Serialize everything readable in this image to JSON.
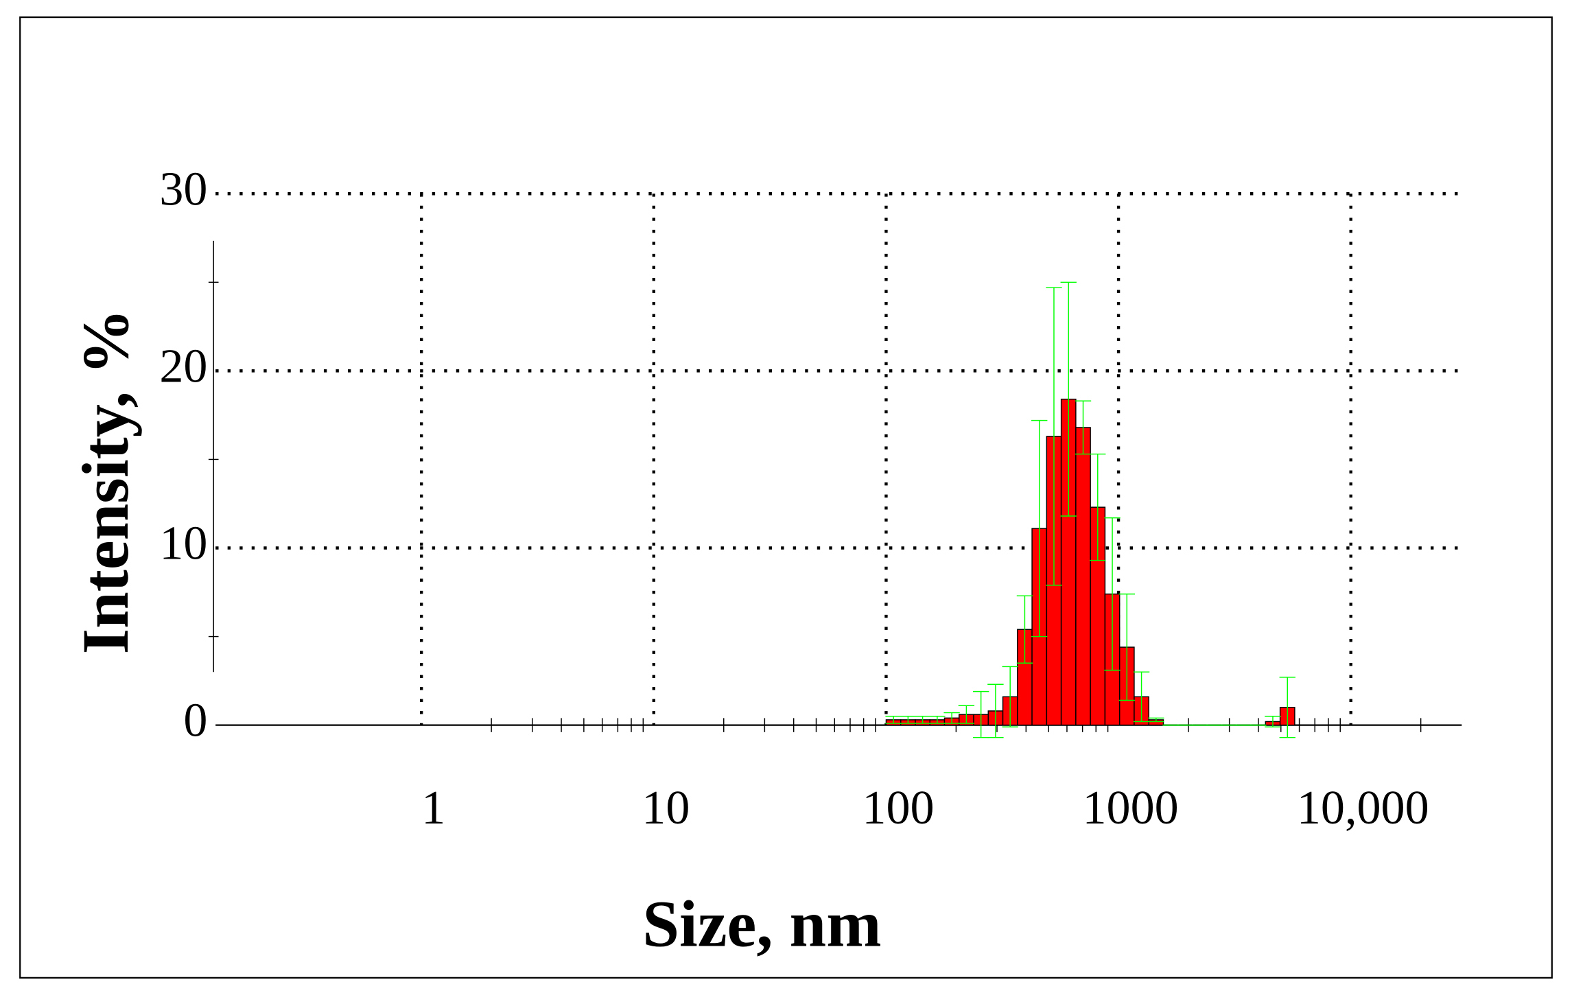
{
  "chart_data": {
    "type": "histogram",
    "xlabel": "Size, nm",
    "ylabel": "Intensity, %",
    "xscale": "log",
    "xlim": [
      0.13,
      30000
    ],
    "xticks": [
      1,
      10,
      100,
      1000,
      {
        "value": 10000,
        "label": "10,000"
      }
    ],
    "xminorticks": [
      2,
      3,
      4,
      5,
      6,
      7,
      8,
      9,
      20,
      30,
      40,
      50,
      60,
      70,
      80,
      90,
      200,
      300,
      400,
      500,
      600,
      700,
      800,
      900,
      2000,
      3000,
      4000,
      5000,
      6000,
      7000,
      8000,
      9000,
      20000
    ],
    "ylim": [
      0,
      30
    ],
    "yticks": [
      0,
      10,
      20,
      30
    ],
    "yminorticks": [
      5,
      15,
      25
    ],
    "grid": true,
    "color": "#ff0000",
    "error_color": "#00ff00",
    "bins": [
      100,
      115.6,
      133.5,
      154.3,
      178.3,
      206.0,
      238.1,
      275.1,
      317.9,
      367.4,
      424.5,
      490.6,
      566.9,
      655.1,
      757.0,
      874.8,
      1011,
      1168,
      1350,
      1560,
      1803,
      2083,
      2407,
      2782,
      3215,
      3715,
      4293,
      4961,
      5733
    ],
    "values": [
      0.3,
      0.3,
      0.3,
      0.3,
      0.4,
      0.6,
      0.6,
      0.8,
      1.6,
      5.4,
      11.1,
      16.3,
      18.4,
      16.8,
      12.3,
      7.4,
      4.4,
      1.6,
      0.3,
      0,
      0,
      0,
      0,
      0,
      0,
      0,
      0.2,
      1.0
    ],
    "errors": [
      0.2,
      0.2,
      0.2,
      0.2,
      0.3,
      0.5,
      1.3,
      1.5,
      1.7,
      1.9,
      6.1,
      8.4,
      6.6,
      1.5,
      3.0,
      4.3,
      3.0,
      1.4,
      0.1,
      0,
      0,
      0,
      0,
      0,
      0,
      0,
      0.3,
      1.7
    ]
  }
}
